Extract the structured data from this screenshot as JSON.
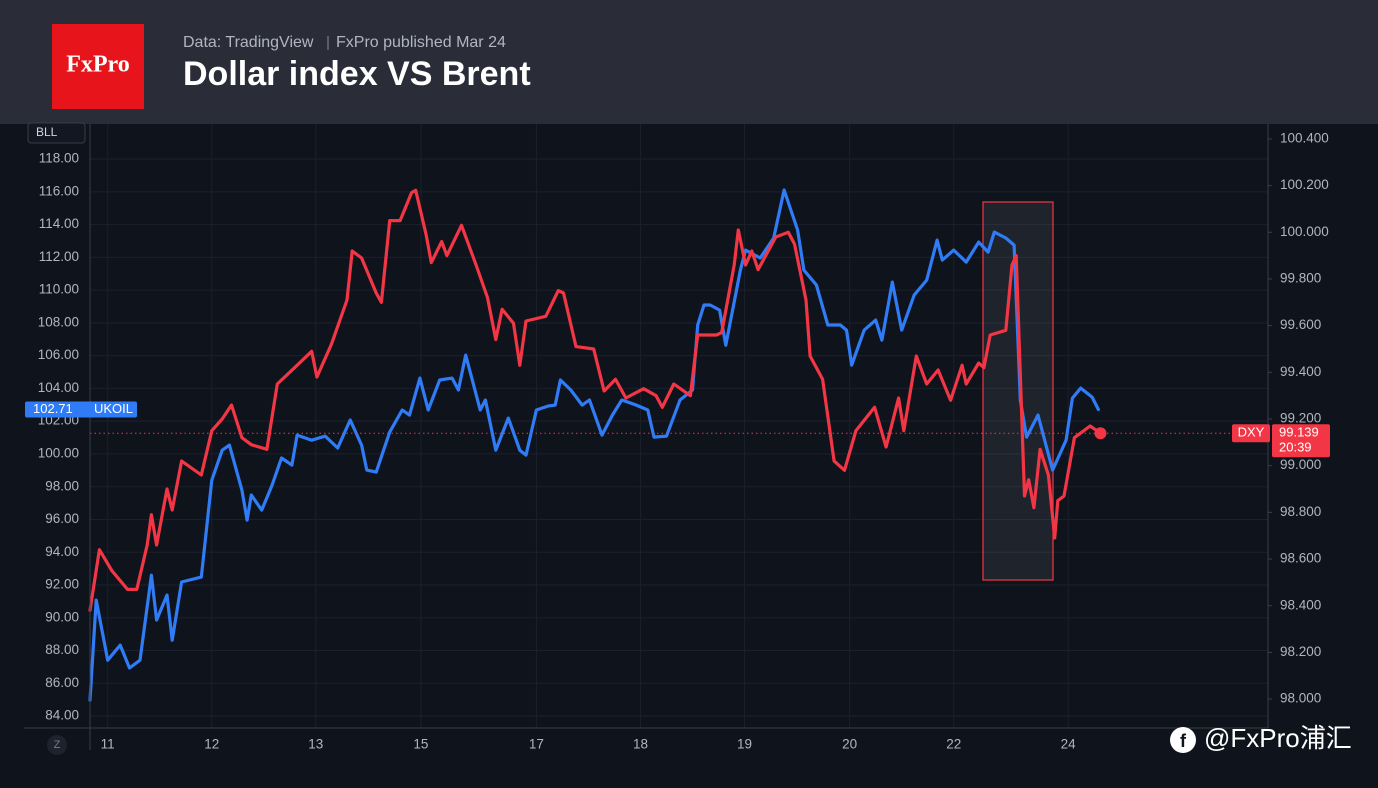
{
  "header": {
    "logo": "FxPro",
    "source": "Data: TradingView",
    "published": "FxPro published Mar 24"
  },
  "watermark": "@FxPro浦汇",
  "scale_button": "Z",
  "chart_data": {
    "type": "line",
    "title": "Dollar index VS Brent",
    "corner_label": "BLL",
    "grid": true,
    "xlim": [
      -0.17,
      11.15
    ],
    "xticks": [
      {
        "value": 0,
        "label": "11"
      },
      {
        "value": 1,
        "label": "12"
      },
      {
        "value": 2,
        "label": "13"
      },
      {
        "value": 3.01,
        "label": "15"
      },
      {
        "value": 4.12,
        "label": "17"
      },
      {
        "value": 5.12,
        "label": "18"
      },
      {
        "value": 6.12,
        "label": "19"
      },
      {
        "value": 7.13,
        "label": "20"
      },
      {
        "value": 8.13,
        "label": "22"
      },
      {
        "value": 9.23,
        "label": "24"
      }
    ],
    "ylim": [
      83.27,
      120.14
    ],
    "yticks": [
      {
        "value": 84,
        "label": "84.00"
      },
      {
        "value": 86,
        "label": "86.00"
      },
      {
        "value": 88,
        "label": "88.00"
      },
      {
        "value": 90,
        "label": "90.00"
      },
      {
        "value": 92,
        "label": "92.00"
      },
      {
        "value": 94,
        "label": "94.00"
      },
      {
        "value": 96,
        "label": "96.00"
      },
      {
        "value": 98,
        "label": "98.00"
      },
      {
        "value": 100,
        "label": "100.00"
      },
      {
        "value": 102,
        "label": "102.00"
      },
      {
        "value": 104,
        "label": "104.00"
      },
      {
        "value": 106,
        "label": "106.00"
      },
      {
        "value": 108,
        "label": "108.00"
      },
      {
        "value": 110,
        "label": "110.00"
      },
      {
        "value": 112,
        "label": "112.00"
      },
      {
        "value": 114,
        "label": "114.00"
      },
      {
        "value": 116,
        "label": "116.00"
      },
      {
        "value": 118,
        "label": "118.00"
      }
    ],
    "y2lim": [
      97.876,
      100.464
    ],
    "y2ticks": [
      {
        "value": 98,
        "label": "98.000"
      },
      {
        "value": 98.2,
        "label": "98.200"
      },
      {
        "value": 98.4,
        "label": "98.400"
      },
      {
        "value": 98.6,
        "label": "98.600"
      },
      {
        "value": 98.8,
        "label": "98.800"
      },
      {
        "value": 99,
        "label": "99.000"
      },
      {
        "value": 99.2,
        "label": "99.200"
      },
      {
        "value": 99.4,
        "label": "99.400"
      },
      {
        "value": 99.6,
        "label": "99.600"
      },
      {
        "value": 99.8,
        "label": "99.800"
      },
      {
        "value": 100,
        "label": "100.000"
      },
      {
        "value": 100.2,
        "label": "100.200"
      },
      {
        "value": 100.4,
        "label": "100.400"
      }
    ],
    "series": [
      {
        "name": "UKOIL",
        "color": "#2f7cf6",
        "x": [
          -0.17,
          -0.11,
          0,
          0.12,
          0.21,
          0.31,
          0.42,
          0.47,
          0.57,
          0.62,
          0.71,
          0.9,
          1.0,
          1.1,
          1.17,
          1.29,
          1.34,
          1.38,
          1.48,
          1.58,
          1.67,
          1.77,
          1.82,
          1.96,
          2.09,
          2.21,
          2.33,
          2.44,
          2.49,
          2.58,
          2.71,
          2.83,
          2.9,
          3.0,
          3.08,
          3.19,
          3.31,
          3.37,
          3.44,
          3.58,
          3.63,
          3.73,
          3.85,
          3.96,
          4.02,
          4.12,
          4.23,
          4.3,
          4.35,
          4.45,
          4.56,
          4.63,
          4.75,
          4.85,
          4.94,
          5.08,
          5.19,
          5.25,
          5.37,
          5.5,
          5.62,
          5.67,
          5.73,
          5.79,
          5.88,
          5.94,
          6.08,
          6.13,
          6.27,
          6.4,
          6.5,
          6.63,
          6.69,
          6.81,
          6.92,
          7.04,
          7.1,
          7.15,
          7.27,
          7.38,
          7.44,
          7.54,
          7.63,
          7.75,
          7.87,
          7.97,
          8.02,
          8.13,
          8.25,
          8.37,
          8.46,
          8.52,
          8.63,
          8.71,
          8.77,
          8.83,
          8.94,
          9.08,
          9.21,
          9.27,
          9.35,
          9.46,
          9.52
        ],
        "values": [
          84.97,
          91.08,
          87.41,
          88.33,
          86.93,
          87.41,
          92.6,
          89.86,
          91.38,
          88.63,
          92.18,
          92.48,
          98.4,
          100.23,
          100.54,
          97.79,
          95.96,
          97.49,
          96.57,
          98.1,
          99.75,
          99.32,
          101.15,
          100.84,
          101.09,
          100.36,
          102.07,
          100.54,
          99.01,
          98.89,
          101.33,
          102.68,
          102.37,
          104.63,
          102.68,
          104.51,
          104.63,
          103.9,
          106.03,
          102.68,
          103.29,
          100.23,
          102.19,
          100.23,
          99.93,
          102.68,
          102.92,
          102.98,
          104.51,
          103.9,
          102.98,
          103.29,
          101.15,
          102.37,
          103.29,
          102.98,
          102.68,
          101.03,
          101.09,
          103.29,
          103.9,
          107.87,
          109.09,
          109.09,
          108.78,
          106.64,
          111.22,
          112.44,
          111.96,
          113.18,
          116.11,
          113.67,
          111.22,
          110.31,
          107.87,
          107.87,
          107.56,
          105.42,
          107.56,
          108.17,
          106.95,
          110.49,
          107.56,
          109.7,
          110.61,
          113.05,
          111.83,
          112.44,
          111.71,
          112.93,
          112.32,
          113.54,
          113.18,
          112.75,
          103.29,
          101.03,
          102.37,
          99.01,
          100.84,
          103.41,
          104.02,
          103.47,
          102.71
        ]
      },
      {
        "name": "DXY",
        "color": "#f23645",
        "axis": "y2",
        "countdown": "20:39",
        "x": [
          -0.17,
          -0.08,
          0.04,
          0.19,
          0.28,
          0.38,
          0.42,
          0.47,
          0.57,
          0.62,
          0.71,
          0.9,
          1.0,
          1.1,
          1.19,
          1.29,
          1.38,
          1.53,
          1.63,
          1.82,
          1.96,
          2.01,
          2.15,
          2.3,
          2.35,
          2.44,
          2.58,
          2.63,
          2.71,
          2.81,
          2.92,
          2.96,
          3.06,
          3.11,
          3.21,
          3.26,
          3.4,
          3.54,
          3.65,
          3.73,
          3.79,
          3.9,
          3.96,
          4.02,
          4.21,
          4.33,
          4.38,
          4.5,
          4.67,
          4.77,
          4.88,
          4.98,
          5.15,
          5.27,
          5.33,
          5.44,
          5.6,
          5.67,
          5.85,
          5.9,
          6.02,
          6.06,
          6.13,
          6.19,
          6.25,
          6.42,
          6.54,
          6.6,
          6.71,
          6.75,
          6.87,
          6.98,
          7.08,
          7.19,
          7.37,
          7.48,
          7.6,
          7.65,
          7.77,
          7.87,
          7.98,
          8.1,
          8.21,
          8.25,
          8.37,
          8.42,
          8.48,
          8.63,
          8.69,
          8.73,
          8.81,
          8.85,
          8.9,
          8.96,
          9.04,
          9.1,
          9.13,
          9.19,
          9.29,
          9.44,
          9.54
        ],
        "values": [
          98.38,
          98.64,
          98.55,
          98.47,
          98.47,
          98.66,
          98.79,
          98.66,
          98.9,
          98.81,
          99.02,
          98.96,
          99.15,
          99.2,
          99.26,
          99.12,
          99.09,
          99.07,
          99.35,
          99.43,
          99.49,
          99.38,
          99.52,
          99.71,
          99.92,
          99.89,
          99.74,
          99.7,
          100.05,
          100.05,
          100.17,
          100.18,
          99.99,
          99.87,
          99.96,
          99.9,
          100.03,
          99.86,
          99.72,
          99.54,
          99.67,
          99.61,
          99.43,
          99.62,
          99.64,
          99.75,
          99.74,
          99.51,
          99.5,
          99.32,
          99.37,
          99.29,
          99.33,
          99.3,
          99.25,
          99.35,
          99.3,
          99.56,
          99.56,
          99.57,
          99.86,
          100.01,
          99.86,
          99.92,
          99.84,
          99.98,
          100.0,
          99.95,
          99.71,
          99.47,
          99.37,
          99.02,
          98.98,
          99.15,
          99.25,
          99.08,
          99.29,
          99.15,
          99.47,
          99.35,
          99.41,
          99.28,
          99.43,
          99.35,
          99.44,
          99.42,
          99.56,
          99.58,
          99.86,
          99.9,
          98.87,
          98.94,
          98.82,
          99.07,
          98.96,
          98.69,
          98.85,
          98.87,
          99.12,
          99.17,
          99.139
        ]
      }
    ]
  }
}
